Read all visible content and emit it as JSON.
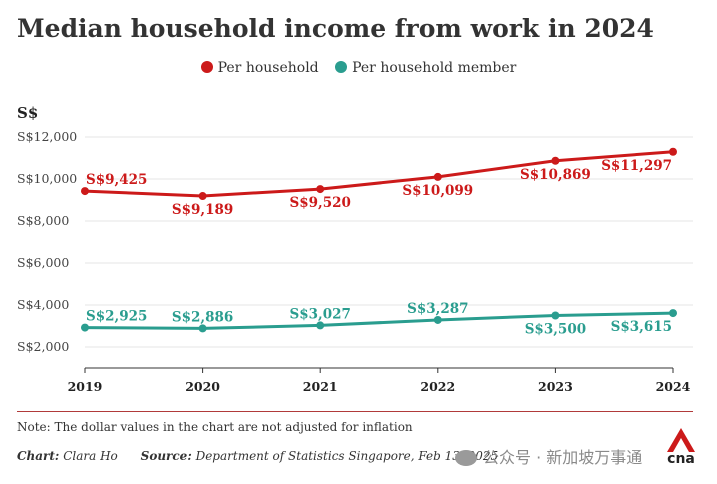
{
  "title": "Median household income from work in 2024",
  "unit_label": "S$",
  "note": "Note: The dollar values in the chart are not adjusted for inflation",
  "credit_label": "Chart:",
  "credit_value": "Clara Ho",
  "source_label": "Source:",
  "source_value": "Department of Statistics Singapore, Feb 13, 2025",
  "watermark": "公众号 · 新加坡万事通",
  "logo_text": "cna",
  "colors": {
    "household": "#cc1a1a",
    "member": "#2a9d8f",
    "grid": "#e6e6e6",
    "axis": "#333333"
  },
  "chart_data": {
    "type": "line",
    "title": "Median household income from work in 2024",
    "ylabel": "S$",
    "x": [
      "2019",
      "2020",
      "2021",
      "2022",
      "2023",
      "2024"
    ],
    "ylim": [
      1000,
      12000
    ],
    "yticks": [
      2000,
      4000,
      6000,
      8000,
      10000,
      12000
    ],
    "ytick_labels": [
      "S$2,000",
      "S$4,000",
      "S$6,000",
      "S$8,000",
      "S$10,000",
      "S$12,000"
    ],
    "grid": true,
    "legend": "top",
    "series": [
      {
        "name": "Per household",
        "values": [
          9425,
          9189,
          9520,
          10099,
          10869,
          11297
        ],
        "labels": [
          "S$9,425",
          "S$9,189",
          "S$9,520",
          "S$10,099",
          "S$10,869",
          "S$11,297"
        ]
      },
      {
        "name": "Per household member",
        "values": [
          2925,
          2886,
          3027,
          3287,
          3500,
          3615
        ],
        "labels": [
          "S$2,925",
          "S$2,886",
          "S$3,027",
          "S$3,287",
          "S$3,500",
          "S$3,615"
        ]
      }
    ]
  }
}
